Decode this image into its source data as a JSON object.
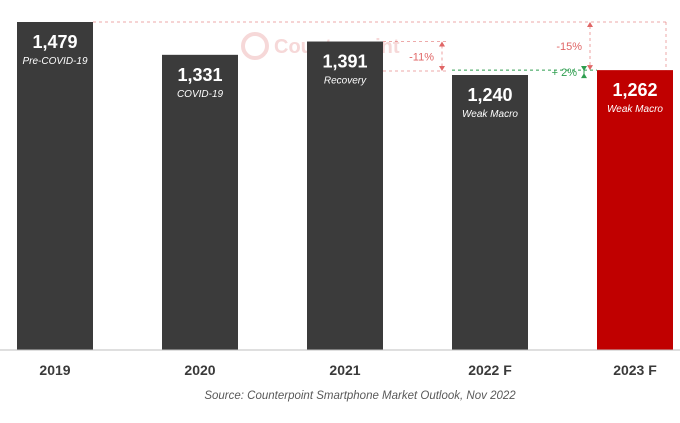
{
  "chart_data": {
    "type": "bar",
    "categories": [
      "2019",
      "2020",
      "2021",
      "2022 F",
      "2023 F"
    ],
    "values": [
      1479,
      1331,
      1391,
      1240,
      1262
    ],
    "value_labels": [
      "1,479",
      "1,331",
      "1,391",
      "1,240",
      "1,262"
    ],
    "bar_sublabels": [
      "Pre-COVID-19",
      "COVID-19",
      "Recovery",
      "Weak Macro",
      "Weak Macro"
    ],
    "bar_colors": [
      "#3b3b3b",
      "#3b3b3b",
      "#3b3b3b",
      "#3b3b3b",
      "#c00000"
    ],
    "ylim": [
      0,
      1479
    ],
    "grid": false,
    "annotations": [
      {
        "text": "-15%",
        "from_category": "2019",
        "to_category": "2023 F",
        "color": "#e06666"
      },
      {
        "text": "-11%",
        "from_category": "2021",
        "to_category": "2022 F",
        "color": "#e06666"
      },
      {
        "text": "+ 2%",
        "from_category": "2022 F",
        "to_category": "2023 F",
        "color": "#2e9e4f"
      }
    ]
  },
  "watermark": "Counterpoint",
  "source": "Source: Counterpoint Smartphone Market Outlook, Nov 2022",
  "colors": {
    "bar": "#3b3b3b",
    "highlight": "#c00000",
    "decline": "#e06666",
    "growth": "#2e9e4f",
    "axis": "#bfbfbf"
  }
}
